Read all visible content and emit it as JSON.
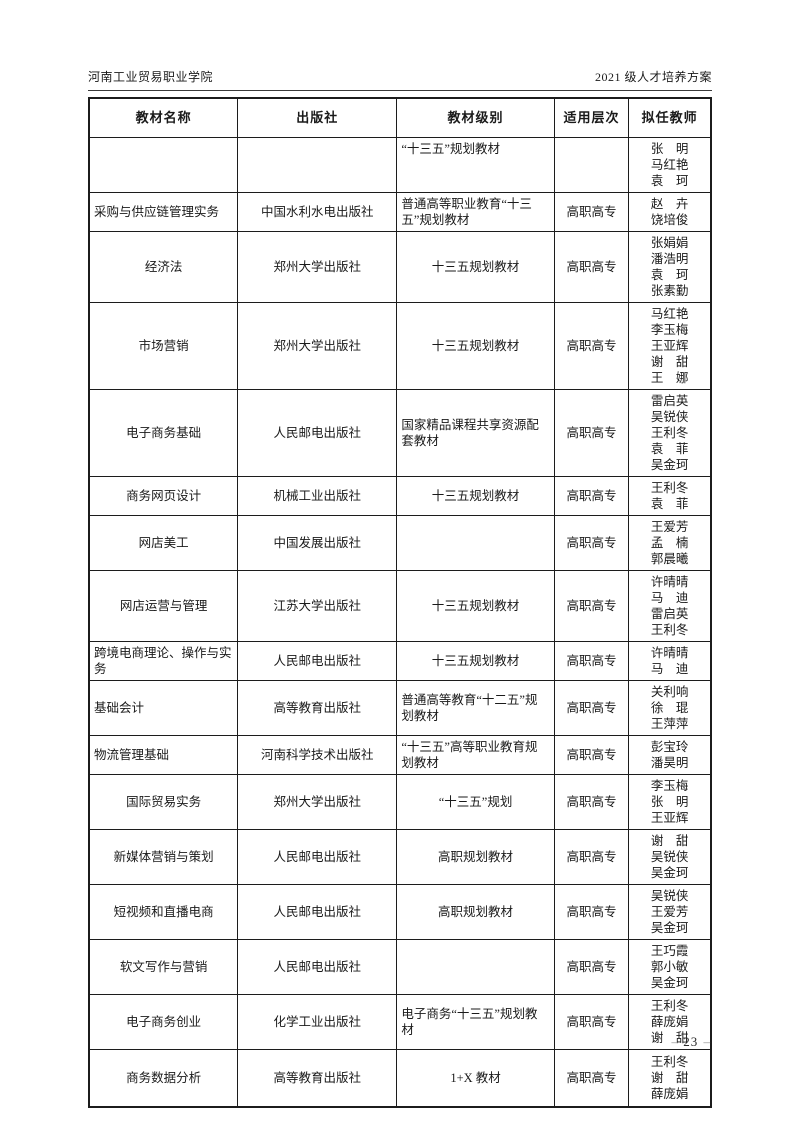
{
  "page": {
    "header_left": "河南工业贸易职业学院",
    "header_right": "2021 级人才培养方案",
    "footer": {
      "dash_left": "–",
      "page_number": "23",
      "dash_right": "–"
    }
  },
  "table": {
    "columns": [
      "教材名称",
      "出版社",
      "教材级别",
      "适用层次",
      "拟任教师"
    ],
    "rows": [
      {
        "name": "",
        "publisher": "",
        "level": "“十三五”规划教材",
        "tier": "",
        "teachers": [
          "张　明",
          "马红艳",
          "袁　珂"
        ],
        "name_align": "left",
        "level_align": "left",
        "valign": "top"
      },
      {
        "name": "采购与供应链管理实务",
        "publisher": "中国水利水电出版社",
        "level": "普通高等职业教育“十三五”规划教材",
        "tier": "高职高专",
        "teachers": [
          "赵　卉",
          "饶培俊"
        ],
        "name_align": "left",
        "level_align": "left"
      },
      {
        "name": "经济法",
        "publisher": "郑州大学出版社",
        "level": "十三五规划教材",
        "tier": "高职高专",
        "teachers": [
          "张娟娟",
          "潘浩明",
          "袁　珂",
          "张素勤"
        ]
      },
      {
        "name": "市场营销",
        "publisher": "郑州大学出版社",
        "level": "十三五规划教材",
        "tier": "高职高专",
        "teachers": [
          "马红艳",
          "李玉梅",
          "王亚辉",
          "谢　甜",
          "王　娜"
        ]
      },
      {
        "name": "电子商务基础",
        "publisher": "人民邮电出版社",
        "level": "国家精品课程共享资源配套教材",
        "tier": "高职高专",
        "teachers": [
          "雷启英",
          "吴锐侠",
          "王利冬",
          "袁　菲",
          "吴金珂"
        ],
        "level_align": "left"
      },
      {
        "name": "商务网页设计",
        "publisher": "机械工业出版社",
        "level": "十三五规划教材",
        "tier": "高职高专",
        "teachers": [
          "王利冬",
          "袁　菲"
        ]
      },
      {
        "name": "网店美工",
        "publisher": "中国发展出版社",
        "level": "",
        "tier": "高职高专",
        "teachers": [
          "王爱芳",
          "孟　楠",
          "郭晨曦"
        ]
      },
      {
        "name": "网店运营与管理",
        "publisher": "江苏大学出版社",
        "level": "十三五规划教材",
        "tier": "高职高专",
        "teachers": [
          "许晴晴",
          "马　迪",
          "雷启英",
          "王利冬"
        ],
        "tall": true
      },
      {
        "name": "跨境电商理论、操作与实务",
        "publisher": "人民邮电出版社",
        "level": "十三五规划教材",
        "tier": "高职高专",
        "teachers": [
          "许晴晴",
          "马　迪"
        ],
        "name_align": "left"
      },
      {
        "name": "基础会计",
        "publisher": "高等教育出版社",
        "level": "普通高等教育“十二五”规划教材",
        "tier": "高职高专",
        "teachers": [
          "关利响",
          "徐　琨",
          "王萍萍"
        ],
        "name_align": "left",
        "level_align": "left"
      },
      {
        "name": "物流管理基础",
        "publisher": "河南科学技术出版社",
        "level": "“十三五”高等职业教育规划教材",
        "tier": "高职高专",
        "teachers": [
          "彭宝玲",
          "潘昊明"
        ],
        "name_align": "left",
        "level_align": "left"
      },
      {
        "name": "国际贸易实务",
        "publisher": "郑州大学出版社",
        "level": "“十三五”规划",
        "tier": "高职高专",
        "teachers": [
          "李玉梅",
          "张　明",
          "王亚辉"
        ]
      },
      {
        "name": "新媒体营销与策划",
        "publisher": "人民邮电出版社",
        "level": "高职规划教材",
        "tier": "高职高专",
        "teachers": [
          "谢　甜",
          "吴锐侠",
          "吴金珂"
        ]
      },
      {
        "name": "短视频和直播电商",
        "publisher": "人民邮电出版社",
        "level": "高职规划教材",
        "tier": "高职高专",
        "teachers": [
          "吴锐侠",
          "王爱芳",
          "吴金珂"
        ]
      },
      {
        "name": "软文写作与营销",
        "publisher": "人民邮电出版社",
        "level": "",
        "tier": "高职高专",
        "teachers": [
          "王巧霞",
          "郭小敏",
          "吴金珂"
        ]
      },
      {
        "name": "电子商务创业",
        "publisher": "化学工业出版社",
        "level": "电子商务“十三五”规划教材",
        "tier": "高职高专",
        "teachers": [
          "王利冬",
          "薛庞娟",
          "谢　甜"
        ],
        "level_align": "left"
      },
      {
        "name": "商务数据分析",
        "publisher": "高等教育出版社",
        "level": "1+X 教材",
        "tier": "高职高专",
        "teachers": [
          "王利冬",
          "谢　甜",
          "薛庞娟"
        ],
        "last": true
      }
    ]
  }
}
